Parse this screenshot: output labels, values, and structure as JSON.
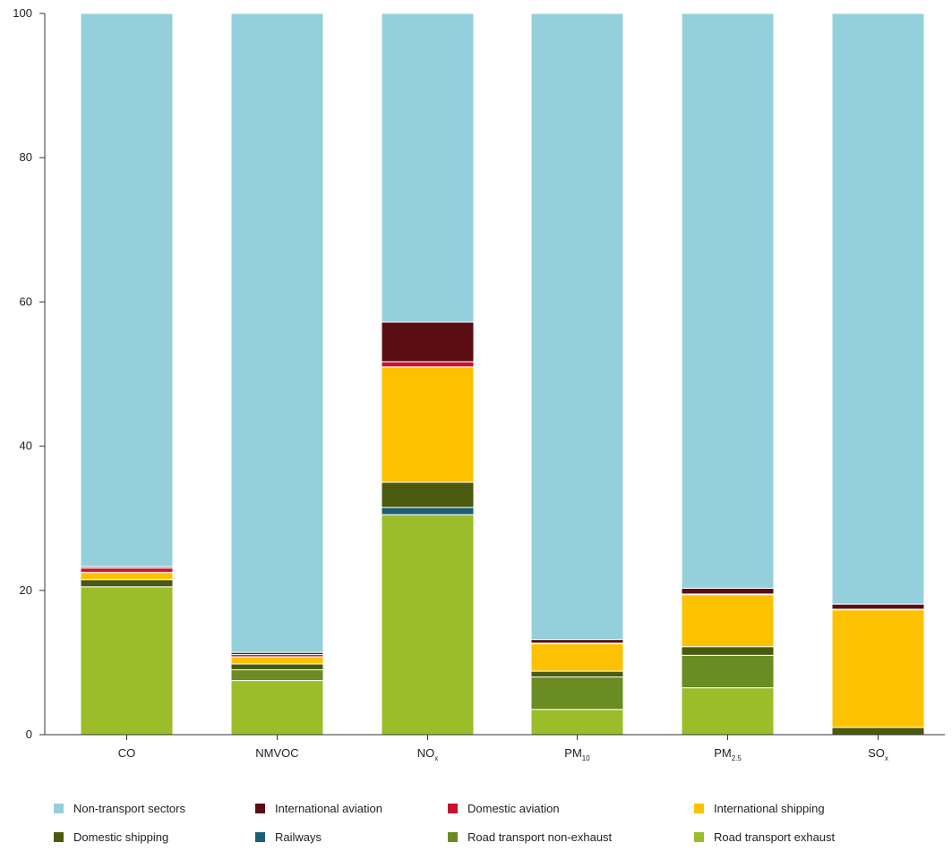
{
  "chart_data": {
    "type": "bar",
    "stacked": true,
    "categories": [
      {
        "base": "CO",
        "sub": ""
      },
      {
        "base": "NMVOC",
        "sub": ""
      },
      {
        "base": "NO",
        "sub": "x"
      },
      {
        "base": "PM",
        "sub": "10"
      },
      {
        "base": "PM",
        "sub": "2.5"
      },
      {
        "base": "SO",
        "sub": "x"
      }
    ],
    "ylim": [
      0,
      100
    ],
    "yticks": [
      0,
      20,
      40,
      60,
      80,
      100
    ],
    "grid": false,
    "legend_position": "bottom",
    "series": [
      {
        "name": "Road transport exhaust",
        "color": "#9bbd2a",
        "values": [
          20.5,
          7.5,
          30.5,
          3.5,
          6.5,
          0.0
        ]
      },
      {
        "name": "Road transport non-exhaust",
        "color": "#6a8c22",
        "values": [
          0.0,
          1.5,
          0.0,
          4.5,
          4.5,
          0.0
        ]
      },
      {
        "name": "Railways",
        "color": "#1d5d75",
        "values": [
          0.0,
          0.0,
          1.0,
          0.0,
          0.0,
          0.0
        ]
      },
      {
        "name": "Domestic shipping",
        "color": "#4a5a0e",
        "values": [
          1.0,
          0.8,
          3.5,
          0.8,
          1.2,
          1.0
        ]
      },
      {
        "name": "International shipping",
        "color": "#fcc100",
        "values": [
          1.0,
          1.0,
          16.0,
          3.8,
          7.2,
          16.3
        ]
      },
      {
        "name": "Domestic aviation",
        "color": "#c41230",
        "values": [
          0.6,
          0.3,
          0.7,
          0.1,
          0.1,
          0.1
        ]
      },
      {
        "name": "International aviation",
        "color": "#5a0d12",
        "values": [
          0.2,
          0.3,
          5.5,
          0.5,
          0.8,
          0.7
        ]
      },
      {
        "name": "Non-transport sectors",
        "color": "#94d0dc",
        "values": [
          76.7,
          88.6,
          42.8,
          86.8,
          79.7,
          81.9
        ]
      }
    ],
    "legend_order": [
      "Non-transport sectors",
      "International aviation",
      "Domestic aviation",
      "International shipping",
      "Domestic shipping",
      "Railways",
      "Road transport non-exhaust",
      "Road transport exhaust"
    ]
  }
}
